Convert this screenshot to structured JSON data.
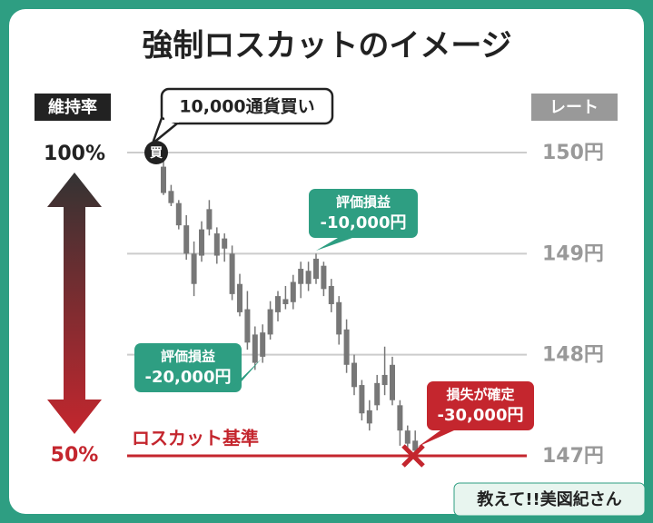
{
  "chart_data": {
    "type": "candlestick",
    "title": "強制ロスカットのイメージ",
    "left_axis_title": "維持率",
    "left_axis_top": "100%",
    "left_axis_bottom": "50%",
    "right_axis_title": "レート",
    "ylim": [
      147,
      150
    ],
    "yticks": [
      {
        "value": 150,
        "label": "150円"
      },
      {
        "value": 149,
        "label": "149円"
      },
      {
        "value": 148,
        "label": "148円"
      },
      {
        "value": 147,
        "label": "147円"
      }
    ],
    "grid": true,
    "color": "#777777",
    "categories": [
      null,
      null,
      null,
      null,
      null,
      null,
      null,
      null,
      null,
      null,
      null,
      null,
      null,
      null,
      null,
      null,
      null,
      null,
      null,
      null,
      null,
      null,
      null,
      null,
      null,
      null,
      null,
      null,
      null,
      null,
      null,
      null,
      null,
      null
    ],
    "open": [
      149.86,
      149.62,
      149.5,
      149.28,
      149.0,
      148.98,
      149.24,
      149.2,
      149.15,
      149.0,
      148.7,
      148.45,
      148.2,
      147.98,
      148.2,
      148.42,
      148.55,
      148.52,
      148.7,
      148.83,
      148.75,
      148.88,
      148.68,
      148.52,
      148.25,
      147.92,
      147.7,
      147.45,
      147.5,
      147.8,
      147.9,
      147.5,
      147.25,
      147.15
    ],
    "high": [
      149.98,
      149.68,
      149.53,
      149.38,
      149.12,
      149.32,
      149.53,
      149.26,
      149.2,
      149.08,
      148.8,
      148.63,
      148.28,
      148.3,
      148.53,
      148.63,
      148.68,
      148.79,
      148.92,
      148.92,
      149.0,
      148.92,
      148.75,
      148.58,
      148.35,
      148.0,
      147.75,
      147.55,
      147.8,
      148.08,
      147.98,
      147.55,
      147.3,
      147.25
    ],
    "low": [
      149.58,
      149.47,
      149.24,
      148.94,
      148.58,
      148.92,
      149.18,
      148.9,
      148.92,
      148.54,
      148.38,
      148.05,
      147.85,
      147.92,
      148.15,
      148.33,
      148.45,
      148.45,
      148.56,
      148.63,
      148.7,
      148.58,
      148.42,
      148.1,
      147.82,
      147.6,
      147.35,
      147.25,
      147.45,
      147.6,
      147.5,
      147.1,
      147.05,
      147.0
    ],
    "close": [
      149.6,
      149.5,
      149.28,
      149.0,
      148.7,
      149.24,
      149.44,
      148.98,
      149.05,
      148.6,
      148.42,
      148.12,
      147.92,
      148.22,
      148.45,
      148.58,
      148.5,
      148.72,
      148.85,
      148.7,
      148.95,
      148.65,
      148.5,
      148.2,
      147.9,
      147.68,
      147.42,
      147.32,
      147.72,
      147.7,
      147.55,
      147.25,
      147.12,
      147.05
    ],
    "buy_marker": "買",
    "buy_note": "10,000通貨買い",
    "losscut_label": "ロスカット基準",
    "losscut_rate": 147,
    "annotations": [
      {
        "title": "評価損益",
        "text": "-10,000円"
      },
      {
        "title": "評価損益",
        "text": "-20,000円"
      },
      {
        "title": "損失が確定",
        "text": "-30,000円"
      }
    ],
    "logo": "教えて!!美図紀さん"
  }
}
